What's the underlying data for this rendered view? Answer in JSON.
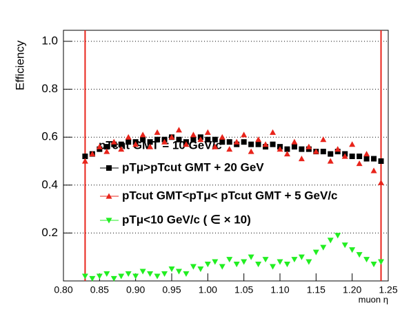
{
  "chart_data": {
    "type": "scatter",
    "x_label": "muon η",
    "y_label": "Efficiency",
    "annotation": "pTcut GMT = 10 GeV/c",
    "xlim": [
      0.8,
      1.25
    ],
    "ylim": [
      0,
      1.046
    ],
    "xticks": [
      {
        "value": 0.8,
        "label": "0.80"
      },
      0.85,
      {
        "value": 0.9,
        "label": "0.90"
      },
      0.95,
      {
        "value": 1.0,
        "label": "1.00"
      },
      1.05,
      {
        "value": 1.1,
        "label": "1.10"
      },
      1.15,
      {
        "value": 1.2,
        "label": "1.20"
      },
      1.25
    ],
    "yticks": [
      0.2,
      0.4,
      0.6,
      0.8,
      {
        "value": 1.0,
        "label": "1.0"
      }
    ],
    "grid": true,
    "vlines": [
      0.83,
      1.24
    ],
    "vline_color": "#e8241b",
    "x": [
      0.83,
      0.84,
      0.85,
      0.86,
      0.87,
      0.88,
      0.89,
      0.9,
      0.91,
      0.92,
      0.93,
      0.94,
      0.95,
      0.96,
      0.97,
      0.98,
      0.99,
      1.0,
      1.01,
      1.02,
      1.03,
      1.04,
      1.05,
      1.06,
      1.07,
      1.08,
      1.09,
      1.1,
      1.11,
      1.12,
      1.13,
      1.14,
      1.15,
      1.16,
      1.17,
      1.18,
      1.19,
      1.2,
      1.21,
      1.22,
      1.23,
      1.24
    ],
    "series": [
      {
        "name": "pTμ>pTcut GMT + 20 GeV",
        "color": "#000000",
        "marker": "square",
        "values": [
          0.52,
          0.53,
          0.55,
          0.56,
          0.57,
          0.57,
          0.58,
          0.58,
          0.59,
          0.58,
          0.59,
          0.59,
          0.6,
          0.59,
          0.58,
          0.59,
          0.6,
          0.59,
          0.59,
          0.58,
          0.58,
          0.57,
          0.58,
          0.57,
          0.57,
          0.56,
          0.57,
          0.56,
          0.55,
          0.56,
          0.55,
          0.55,
          0.54,
          0.54,
          0.53,
          0.54,
          0.53,
          0.52,
          0.52,
          0.51,
          0.51,
          0.5
        ]
      },
      {
        "name": "pTcut GMT<pTμ< pTcut GMT + 5 GeV/c",
        "color": "#e8241b",
        "marker": "triangle-up",
        "values": [
          0.5,
          0.53,
          0.56,
          0.54,
          0.58,
          0.55,
          0.6,
          0.57,
          0.61,
          0.56,
          0.62,
          0.58,
          0.6,
          0.63,
          0.57,
          0.61,
          0.59,
          0.62,
          0.56,
          0.6,
          0.55,
          0.58,
          0.61,
          0.54,
          0.59,
          0.57,
          0.62,
          0.55,
          0.53,
          0.58,
          0.51,
          0.56,
          0.54,
          0.59,
          0.5,
          0.55,
          0.52,
          0.57,
          0.49,
          0.53,
          0.46,
          0.41
        ]
      },
      {
        "name": "pTμ<10 GeV/c ( ∈ × 10)",
        "color": "#22ee22",
        "marker": "triangle-down",
        "values": [
          0.02,
          0.01,
          0.02,
          0.03,
          0.01,
          0.02,
          0.03,
          0.02,
          0.04,
          0.03,
          0.02,
          0.03,
          0.05,
          0.04,
          0.03,
          0.06,
          0.05,
          0.07,
          0.08,
          0.06,
          0.09,
          0.07,
          0.08,
          0.1,
          0.07,
          0.09,
          0.06,
          0.08,
          0.07,
          0.09,
          0.1,
          0.08,
          0.12,
          0.14,
          0.17,
          0.19,
          0.15,
          0.13,
          0.11,
          0.09,
          0.07,
          0.08
        ]
      }
    ]
  }
}
